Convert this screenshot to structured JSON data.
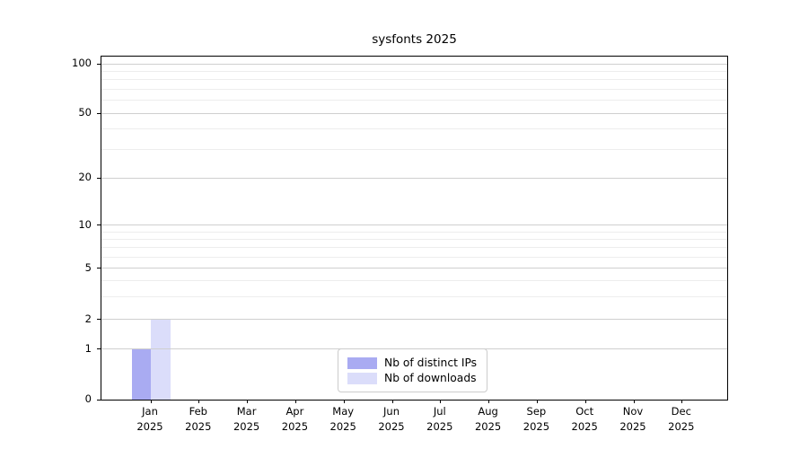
{
  "chart_data": {
    "type": "bar",
    "title": "sysfonts 2025",
    "months": [
      "Jan",
      "Feb",
      "Mar",
      "Apr",
      "May",
      "Jun",
      "Jul",
      "Aug",
      "Sep",
      "Oct",
      "Nov",
      "Dec"
    ],
    "year": "2025",
    "categories": [
      "Jan 2025",
      "Feb 2025",
      "Mar 2025",
      "Apr 2025",
      "May 2025",
      "Jun 2025",
      "Jul 2025",
      "Aug 2025",
      "Sep 2025",
      "Oct 2025",
      "Nov 2025",
      "Dec 2025"
    ],
    "series": [
      {
        "id": "distinct-ips",
        "name": "Nb of distinct IPs",
        "color": "#a9abf2",
        "values": [
          1,
          0,
          0,
          0,
          0,
          0,
          0,
          0,
          0,
          0,
          0,
          0
        ]
      },
      {
        "id": "downloads",
        "name": "Nb of downloads",
        "color": "#dbddfa",
        "values": [
          2,
          0,
          0,
          0,
          0,
          0,
          0,
          0,
          0,
          0,
          0,
          0
        ]
      }
    ],
    "y_ticks": [
      0,
      1,
      2,
      5,
      10,
      20,
      50,
      100
    ],
    "y_tick_labels": [
      "0",
      "1",
      "2",
      "5",
      "10",
      "20",
      "50",
      "100"
    ],
    "y_minor_ticks": [
      3,
      4,
      6,
      7,
      8,
      9,
      30,
      40,
      60,
      70,
      80,
      90
    ],
    "y_scale": "log-like (compressed near zero)",
    "ylim": [
      0,
      105
    ],
    "grid": "horizontal",
    "legend_position": "inside bottom-center"
  }
}
